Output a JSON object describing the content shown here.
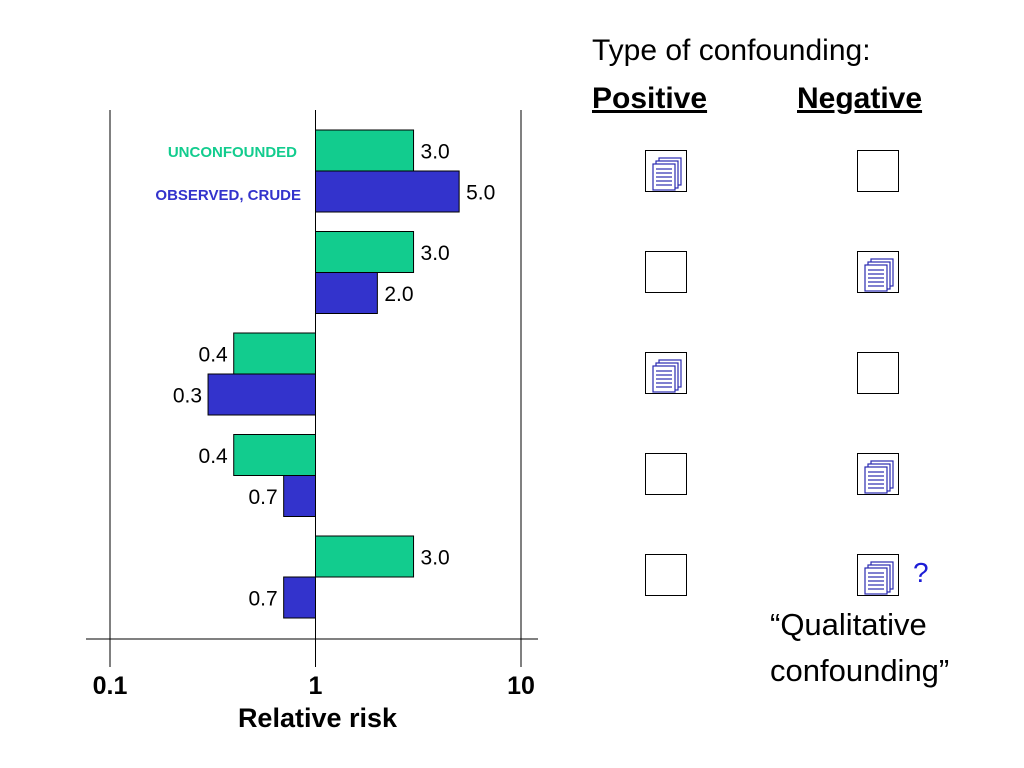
{
  "chart_data": {
    "type": "bar",
    "orientation": "horizontal",
    "x_scale": "log",
    "xlim": [
      0.1,
      10
    ],
    "xlabel": "Relative risk",
    "x_ticks": [
      "0.1",
      "1",
      "10"
    ],
    "series": [
      {
        "name": "UNCONFOUNDED",
        "color": "#12cc8e",
        "values": [
          3.0,
          3.0,
          0.4,
          0.4,
          3.0
        ],
        "labels": [
          "3.0",
          "3.0",
          "0.4",
          "0.4",
          "3.0"
        ]
      },
      {
        "name": "OBSERVED, CRUDE",
        "color": "#3333cc",
        "values": [
          5.0,
          2.0,
          0.3,
          0.7,
          0.7
        ],
        "labels": [
          "5.0",
          "2.0",
          "0.3",
          "0.7",
          "0.7"
        ]
      }
    ]
  },
  "panel": {
    "title": "Type of confounding:",
    "positive_label": "Positive",
    "negative_label": "Negative",
    "rows": [
      {
        "positive": true,
        "negative": false
      },
      {
        "positive": false,
        "negative": true
      },
      {
        "positive": true,
        "negative": false
      },
      {
        "positive": false,
        "negative": true
      },
      {
        "positive": false,
        "negative": true
      }
    ],
    "question_mark": "?",
    "note_line1": "“Qualitative",
    "note_line2": "confounding”"
  },
  "colors": {
    "unconfounded": "#12cc8e",
    "observed": "#3333cc",
    "axis": "#000000"
  },
  "icons": {
    "checked": "document-stack-icon"
  }
}
